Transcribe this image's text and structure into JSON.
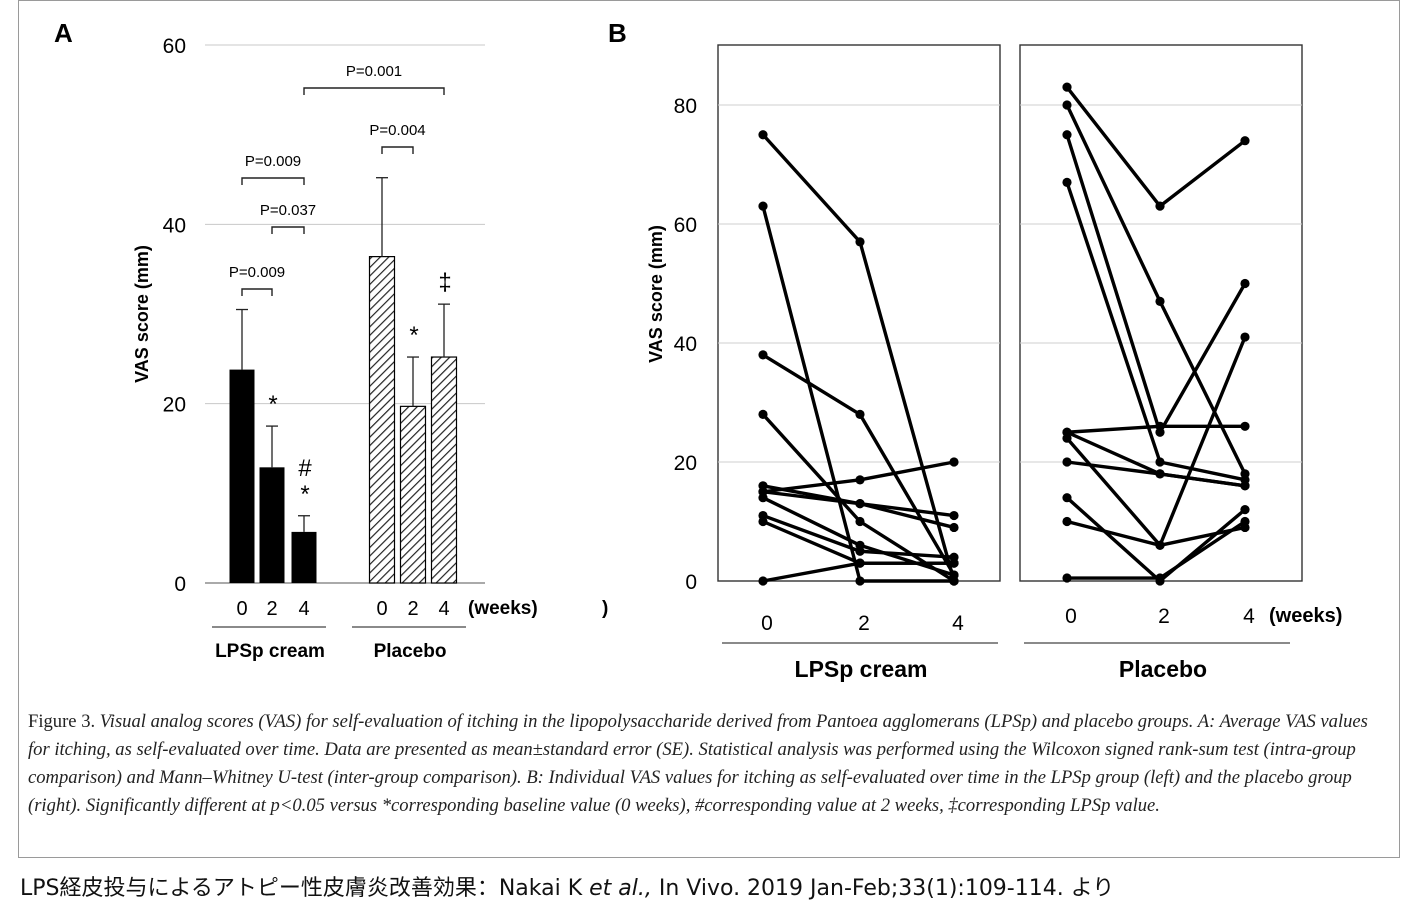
{
  "chart_data": [
    {
      "panel": "A",
      "type": "bar",
      "ylabel": "VAS score (mm)",
      "ylim": [
        0,
        60
      ],
      "yticks": [
        0,
        20,
        40,
        60
      ],
      "grid": true,
      "x_unit": "(weeks)",
      "stray_paren": ")",
      "groups": [
        {
          "name": "LPSp cream",
          "fill": "solid",
          "categories": [
            "0",
            "2",
            "4"
          ],
          "values": [
            23.8,
            12.9,
            5.7
          ],
          "errors": [
            6.7,
            4.6,
            1.8
          ],
          "markers": [
            "",
            "*",
            "#\n*"
          ]
        },
        {
          "name": "Placebo",
          "fill": "hatched",
          "categories": [
            "0",
            "2",
            "4"
          ],
          "values": [
            36.4,
            19.7,
            25.2
          ],
          "errors": [
            8.8,
            5.5,
            5.9
          ],
          "markers": [
            "",
            "*",
            "‡"
          ]
        }
      ],
      "annotations": [
        {
          "text": "P=0.009",
          "from": "LPSp cream 0",
          "to": "LPSp cream 2"
        },
        {
          "text": "P=0.037",
          "from": "LPSp cream 2",
          "to": "LPSp cream 4"
        },
        {
          "text": "P=0.009",
          "from": "LPSp cream 0",
          "to": "LPSp cream 4"
        },
        {
          "text": "P=0.004",
          "from": "Placebo 0",
          "to": "Placebo 2"
        },
        {
          "text": "P=0.001",
          "from": "LPSp cream 4",
          "to": "Placebo 4"
        }
      ]
    },
    {
      "panel": "B",
      "type": "line",
      "ylabel": "VAS score (mm)",
      "ylim": [
        0,
        90
      ],
      "yticks": [
        0,
        20,
        40,
        60,
        80
      ],
      "grid": true,
      "x": [
        "0",
        "2",
        "4"
      ],
      "x_unit": "(weeks)",
      "groups": [
        {
          "name": "LPSp cream",
          "subjects": [
            [
              75,
              57,
              0
            ],
            [
              63,
              0,
              0
            ],
            [
              38,
              28,
              1
            ],
            [
              28,
              10,
              0
            ],
            [
              16,
              13,
              11
            ],
            [
              15,
              17,
              20
            ],
            [
              15,
              13,
              9
            ],
            [
              14,
              6,
              1
            ],
            [
              11,
              5,
              4
            ],
            [
              10,
              3,
              3
            ],
            [
              0,
              3,
              3
            ]
          ]
        },
        {
          "name": "Placebo",
          "subjects": [
            [
              83,
              63,
              74
            ],
            [
              80,
              47,
              18
            ],
            [
              75,
              25,
              50
            ],
            [
              67,
              20,
              17
            ],
            [
              25,
              26,
              26
            ],
            [
              25,
              18,
              16
            ],
            [
              24,
              6,
              41
            ],
            [
              20,
              18,
              16
            ],
            [
              14,
              0,
              12
            ],
            [
              10,
              6,
              9
            ],
            [
              0.5,
              0.5,
              10
            ]
          ]
        }
      ]
    }
  ],
  "panel_labels": {
    "a": "A",
    "b": "B"
  },
  "caption": {
    "label": "Figure 3. ",
    "body": "Visual analog scores (VAS) for self-evaluation of itching in the lipopolysaccharide derived from Pantoea agglomerans (LPSp) and placebo groups. A: Average VAS values for itching, as self-evaluated over time. Data are presented as mean±standard error (SE). Statistical analysis was performed using the Wilcoxon signed rank-sum test (intra-group comparison) and Mann–Whitney U-test (inter-group comparison). B: Individual VAS values for itching as self-evaluated over time in the LPSp group (left) and the placebo group (right). Significantly different at p<0.05 versus *corresponding baseline value (0 weeks), #corresponding value at 2 weeks, ‡corresponding LPSp value."
  },
  "source": {
    "prefix": "LPS経皮投与によるアトピー性皮膚炎改善効果：Nakai K ",
    "italic": "et al.,",
    "suffix": " In Vivo. 2019 Jan-Feb;33(1):109-114.  より"
  }
}
